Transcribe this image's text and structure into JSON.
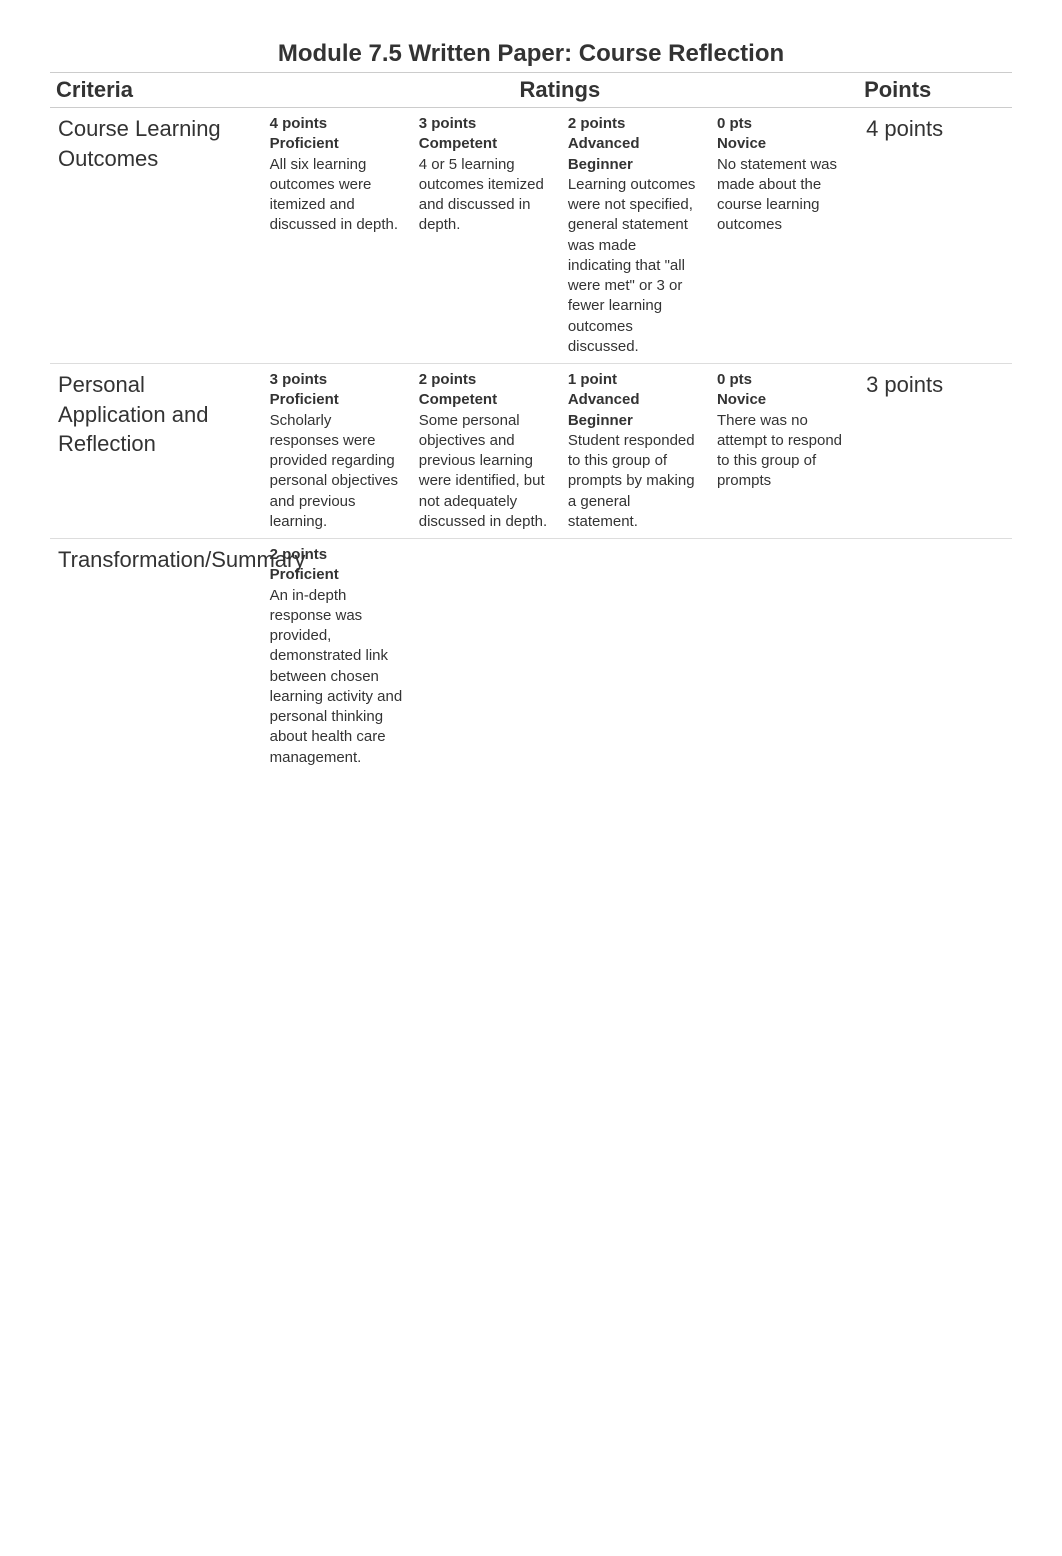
{
  "rubric": {
    "title": "Module 7.5 Written Paper: Course Reflection",
    "headers": {
      "criteria": "Criteria",
      "ratings": "Ratings",
      "points": "Points"
    },
    "colors": {
      "text": "#333333",
      "border": "#cccccc",
      "row_border": "#dddddd",
      "background": "#ffffff"
    },
    "fonts": {
      "title_size_pt": 18,
      "header_size_pt": 17,
      "criteria_size_pt": 17,
      "body_size_pt": 11
    },
    "rows": [
      {
        "criteria": "Course Learning Outcomes",
        "points": "4 points",
        "ratings": [
          {
            "points": "4 points",
            "label": "Proficient",
            "desc": "All six learning outcomes were itemized and discussed in depth."
          },
          {
            "points": "3 points",
            "label": "Competent",
            "desc": "4 or 5 learning outcomes itemized and discussed in depth."
          },
          {
            "points": "2 points",
            "label": "Advanced Beginner",
            "desc": "Learning outcomes were not specified, general statement was made indicating that \"all were met\" or 3 or fewer learning outcomes discussed."
          },
          {
            "points": "0 pts",
            "label": "Novice",
            "desc": "No statement was made about the course learning outcomes"
          }
        ]
      },
      {
        "criteria": "Personal Application and Reflection",
        "points": "3 points",
        "ratings": [
          {
            "points": "3 points",
            "label": "Proficient",
            "desc": "Scholarly responses were provided regarding personal objectives and previous learning."
          },
          {
            "points": "2 points",
            "label": "Competent",
            "desc": "Some personal objectives and previous learning were identified, but not adequately discussed in depth."
          },
          {
            "points": "1 point",
            "label": "Advanced Beginner",
            "desc": "Student responded to this group of prompts by making a general statement."
          },
          {
            "points": "0 pts",
            "label": "Novice",
            "desc": "There was no attempt to respond to this group of prompts"
          }
        ]
      },
      {
        "criteria": "Transformation/Summary",
        "points": "",
        "ratings": [
          {
            "points": "2 points",
            "label": "Proficient",
            "desc": "An in-depth response was provided, demonstrated link between chosen learning activity and personal thinking about health care management."
          },
          {
            "points": "",
            "label": "",
            "desc": ""
          },
          {
            "points": "",
            "label": "",
            "desc": ""
          },
          {
            "points": "",
            "label": "",
            "desc": ""
          }
        ]
      }
    ]
  }
}
